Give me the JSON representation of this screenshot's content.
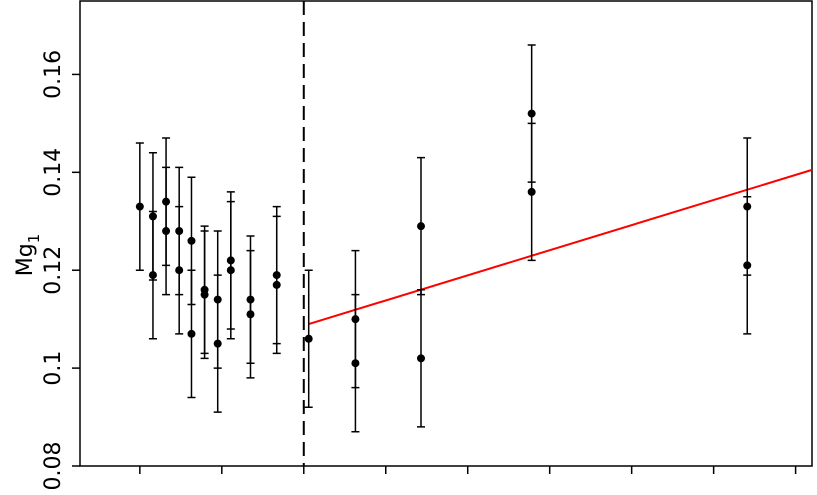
{
  "chart_data": {
    "type": "scatter",
    "ylabel": "Mg",
    "ylabel_sub": "1",
    "xlim": [
      -0.73,
      8.2
    ],
    "xticks": [
      0,
      1,
      2,
      3,
      4,
      5,
      6,
      7,
      8
    ],
    "ylim": [
      0.08,
      0.175
    ],
    "yticks": [
      0.08,
      0.1,
      0.12,
      0.14,
      0.16
    ],
    "series": [
      {
        "color": "#000000",
        "x": [
          0,
          0.16,
          0.16,
          0.32,
          0.32,
          0.48,
          0.48,
          0.63,
          0.63,
          0.79,
          0.79,
          0.95,
          0.95,
          1.11,
          1.11,
          1.35,
          1.35,
          1.67,
          1.67,
          2.06,
          2.63,
          2.63,
          3.43,
          3.43,
          4.78,
          4.78,
          7.41,
          7.41
        ],
        "values": [
          0.133,
          0.131,
          0.119,
          0.134,
          0.128,
          0.128,
          0.12,
          0.126,
          0.107,
          0.116,
          0.115,
          0.114,
          0.105,
          0.122,
          0.12,
          0.114,
          0.111,
          0.119,
          0.117,
          0.106,
          0.11,
          0.101,
          0.129,
          0.102,
          0.152,
          0.136,
          0.133,
          0.121
        ],
        "errors": [
          0.013,
          0.013,
          0.013,
          0.013,
          0.013,
          0.013,
          0.013,
          0.013,
          0.013,
          0.013,
          0.013,
          0.014,
          0.014,
          0.014,
          0.014,
          0.013,
          0.013,
          0.014,
          0.014,
          0.014,
          0.014,
          0.014,
          0.014,
          0.014,
          0.014,
          0.014,
          0.014,
          0.014
        ]
      }
    ],
    "fit_line": {
      "color": "#ff0000",
      "x": [
        2.06,
        8.2
      ],
      "values": [
        0.109,
        0.1405
      ]
    },
    "divider_x": 2
  }
}
